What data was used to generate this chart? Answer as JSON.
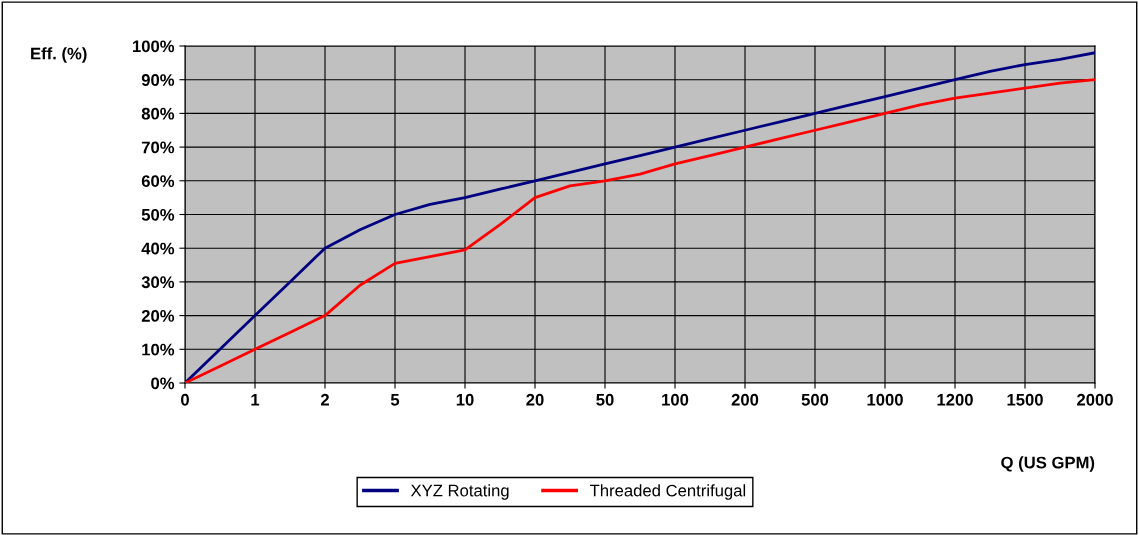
{
  "chart_data": {
    "type": "line",
    "xlabel": "Q (US GPM)",
    "ylabel": "Eff. (%)",
    "categories": [
      "0",
      null,
      "1",
      null,
      "2",
      null,
      "5",
      null,
      "10",
      null,
      "20",
      null,
      "50",
      null,
      "100",
      null,
      "200",
      null,
      "500",
      null,
      "1000",
      null,
      "1200",
      null,
      "1500",
      null,
      "2000"
    ],
    "series": [
      {
        "name": "XYZ Rotating",
        "color": "#000080",
        "values": [
          0,
          10,
          20,
          30,
          40,
          45.5,
          50,
          53,
          55,
          57.5,
          60,
          62.5,
          65,
          67.5,
          70,
          72.5,
          75,
          77.5,
          80,
          82.5,
          85,
          87.5,
          90,
          92.5,
          94.5,
          96,
          98
        ]
      },
      {
        "name": "Threaded Centrifugal",
        "color": "#ff0000",
        "values": [
          0,
          5,
          10,
          15,
          20,
          29,
          35.5,
          37.5,
          39.5,
          47,
          55,
          58.5,
          60,
          62,
          65,
          67.5,
          70,
          72.5,
          75,
          77.5,
          80,
          82.5,
          84.5,
          86,
          87.5,
          89,
          90
        ]
      }
    ],
    "ylim": [
      0,
      100
    ],
    "yticks": [
      {
        "value": 0,
        "label": "0%"
      },
      {
        "value": 10,
        "label": "10%"
      },
      {
        "value": 20,
        "label": "20%"
      },
      {
        "value": 30,
        "label": "30%"
      },
      {
        "value": 40,
        "label": "40%"
      },
      {
        "value": 50,
        "label": "50%"
      },
      {
        "value": 60,
        "label": "60%"
      },
      {
        "value": 70,
        "label": "70%"
      },
      {
        "value": 80,
        "label": "80%"
      },
      {
        "value": 90,
        "label": "90%"
      },
      {
        "value": 100,
        "label": "100%"
      }
    ],
    "grid": true,
    "legend": "bottom",
    "marker": "none",
    "line_style": "solid"
  }
}
